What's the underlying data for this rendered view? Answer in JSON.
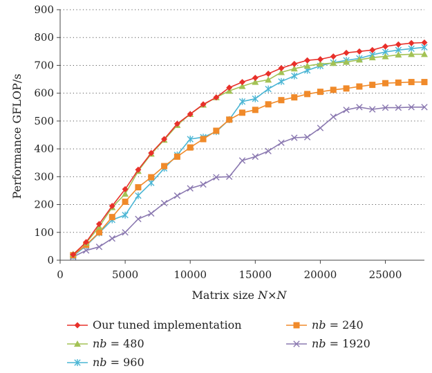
{
  "chart_data": {
    "type": "line",
    "title": "",
    "xlabel_parts": [
      "Matrix size ",
      "N",
      "×",
      "N"
    ],
    "ylabel": "Performance GFLOP/s",
    "xlim": [
      0,
      28000
    ],
    "ylim": [
      0,
      900
    ],
    "xticks": [
      0,
      5000,
      10000,
      15000,
      20000,
      25000
    ],
    "yticks": [
      0,
      100,
      200,
      300,
      400,
      500,
      600,
      700,
      800,
      900
    ],
    "grid": "horizontal dotted",
    "legend_position": "bottom",
    "x": [
      1000,
      2000,
      3000,
      4000,
      5000,
      6000,
      7000,
      8000,
      9000,
      10000,
      11000,
      12000,
      13000,
      14000,
      15000,
      16000,
      17000,
      18000,
      19000,
      20000,
      21000,
      22000,
      23000,
      24000,
      25000,
      26000,
      27000,
      28000
    ],
    "series": [
      {
        "name": "Our tuned implementation",
        "legend_parts": [
          "Our tuned implementation"
        ],
        "color": "#e8302a",
        "marker": "diamond",
        "values": [
          20,
          65,
          130,
          195,
          255,
          325,
          385,
          435,
          490,
          525,
          560,
          585,
          620,
          640,
          655,
          670,
          690,
          705,
          718,
          722,
          732,
          745,
          750,
          755,
          768,
          775,
          780,
          782
        ]
      },
      {
        "name": "nb = 240",
        "legend_parts": [
          "nb",
          " = 240"
        ],
        "color": "#f08a2a",
        "marker": "square",
        "values": [
          18,
          55,
          100,
          155,
          210,
          262,
          298,
          338,
          372,
          405,
          435,
          465,
          505,
          530,
          540,
          560,
          575,
          585,
          597,
          605,
          612,
          617,
          624,
          630,
          636,
          638,
          640,
          640
        ]
      },
      {
        "name": "nb = 480",
        "legend_parts": [
          "nb",
          " = 480"
        ],
        "color": "#a3c255",
        "marker": "triangle",
        "values": [
          22,
          62,
          120,
          190,
          238,
          320,
          382,
          432,
          485,
          525,
          558,
          585,
          608,
          625,
          640,
          648,
          675,
          688,
          698,
          705,
          708,
          712,
          720,
          728,
          732,
          738,
          740,
          740
        ]
      },
      {
        "name": "nb = 960",
        "legend_parts": [
          "nb",
          " = 960"
        ],
        "color": "#4ab5d4",
        "marker": "star",
        "values": [
          15,
          52,
          98,
          145,
          162,
          232,
          278,
          330,
          378,
          435,
          442,
          462,
          505,
          570,
          580,
          615,
          642,
          662,
          682,
          698,
          710,
          718,
          725,
          738,
          748,
          755,
          760,
          765
        ]
      },
      {
        "name": "nb = 1920",
        "legend_parts": [
          "nb",
          " = 1920"
        ],
        "color": "#8a78b0",
        "marker": "x",
        "values": [
          12,
          35,
          48,
          78,
          100,
          148,
          168,
          205,
          232,
          258,
          272,
          298,
          300,
          358,
          372,
          392,
          422,
          440,
          442,
          475,
          515,
          540,
          550,
          542,
          548,
          548,
          550,
          550
        ]
      }
    ]
  }
}
